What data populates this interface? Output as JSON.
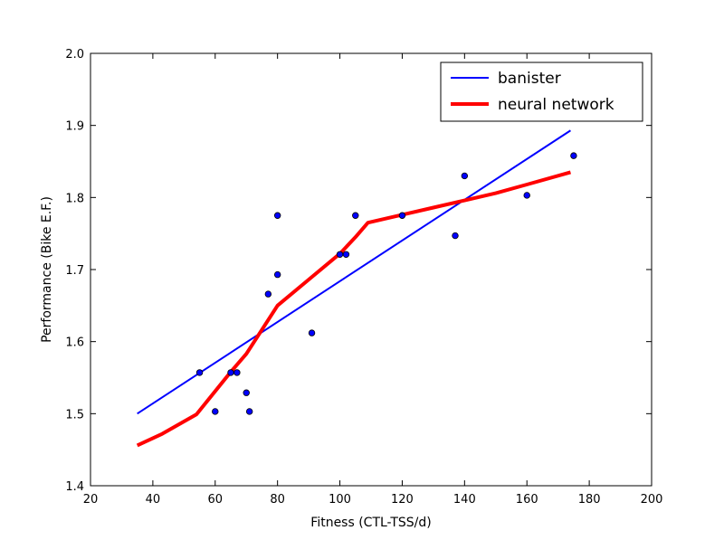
{
  "chart_data": {
    "type": "scatter",
    "title": "",
    "xlabel": "Fitness (CTL-TSS/d)",
    "ylabel": "Performance (Bike E.F.)",
    "xlim": [
      20,
      200
    ],
    "ylim": [
      1.4,
      2.0
    ],
    "xticks": [
      20,
      40,
      60,
      80,
      100,
      120,
      140,
      160,
      180,
      200
    ],
    "yticks": [
      1.4,
      1.5,
      1.6,
      1.7,
      1.8,
      1.9,
      2.0
    ],
    "xtick_labels": [
      "20",
      "40",
      "60",
      "80",
      "100",
      "120",
      "140",
      "160",
      "180",
      "200"
    ],
    "ytick_labels": [
      "1.4",
      "1.5",
      "1.6",
      "1.7",
      "1.8",
      "1.9",
      "2.0"
    ],
    "grid": false,
    "legend_position": "top-right",
    "points": [
      {
        "x": 55,
        "y": 1.557
      },
      {
        "x": 60,
        "y": 1.503
      },
      {
        "x": 65,
        "y": 1.557
      },
      {
        "x": 67,
        "y": 1.557
      },
      {
        "x": 70,
        "y": 1.529
      },
      {
        "x": 71,
        "y": 1.503
      },
      {
        "x": 77,
        "y": 1.666
      },
      {
        "x": 80,
        "y": 1.775
      },
      {
        "x": 80,
        "y": 1.693
      },
      {
        "x": 91,
        "y": 1.612
      },
      {
        "x": 100,
        "y": 1.721
      },
      {
        "x": 102,
        "y": 1.721
      },
      {
        "x": 105,
        "y": 1.775
      },
      {
        "x": 120,
        "y": 1.775
      },
      {
        "x": 137,
        "y": 1.747
      },
      {
        "x": 140,
        "y": 1.83
      },
      {
        "x": 160,
        "y": 1.803
      },
      {
        "x": 175,
        "y": 1.858
      }
    ],
    "series": [
      {
        "name": "banister",
        "color": "#0000ff",
        "x": [
          35,
          174
        ],
        "y": [
          1.5,
          1.893
        ]
      },
      {
        "name": "neural network",
        "color": "#ff0000",
        "x": [
          35,
          43,
          54,
          65,
          70,
          80,
          90,
          100,
          105,
          109,
          120,
          130,
          140,
          150,
          160,
          174
        ],
        "y": [
          1.456,
          1.472,
          1.499,
          1.558,
          1.583,
          1.65,
          1.686,
          1.722,
          1.745,
          1.765,
          1.776,
          1.786,
          1.796,
          1.806,
          1.818,
          1.835
        ]
      }
    ],
    "colors": {
      "points_fill": "#0000ff",
      "points_edge": "#000000"
    }
  }
}
